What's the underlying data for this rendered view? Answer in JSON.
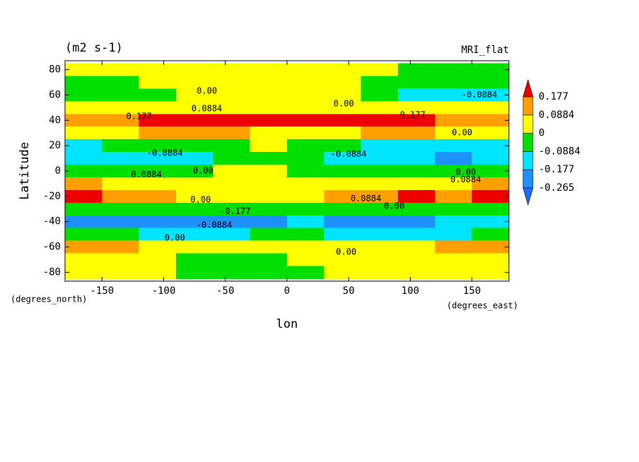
{
  "chart_data": {
    "type": "contour",
    "title": "(m2 s-1)",
    "subtitle": "MRI_flat",
    "xlabel": "lon",
    "ylabel": "Latitude",
    "x_units": "(degrees_east)",
    "y_units": "(degrees_north)",
    "xlim": [
      -180,
      180
    ],
    "ylim": [
      -87,
      87
    ],
    "xticks": [
      -150,
      -100,
      -50,
      0,
      50,
      100,
      150
    ],
    "yticks": [
      80,
      60,
      40,
      20,
      0,
      -20,
      -40,
      -60,
      -80
    ],
    "levels": [
      -0.265,
      -0.177,
      -0.0884,
      0,
      0.0884,
      0.177
    ],
    "colors": [
      "#1e6cff",
      "#1e90ff",
      "#00e5ff",
      "#00e000",
      "#ffff00",
      "#ffa000",
      "#ee0000"
    ],
    "lon": [
      -165,
      -135,
      -105,
      -75,
      -45,
      -15,
      15,
      45,
      75,
      105,
      135,
      165
    ],
    "lat": [
      80,
      70,
      60,
      50,
      40,
      30,
      20,
      10,
      0,
      -10,
      -20,
      -30,
      -40,
      -50,
      -60,
      -70,
      -80
    ],
    "values": [
      [
        0.02,
        0.02,
        0.02,
        0.03,
        0.03,
        0.03,
        0.02,
        0.02,
        0.02,
        -0.03,
        -0.03,
        -0.03
      ],
      [
        -0.03,
        -0.03,
        0.02,
        0.02,
        0.03,
        0.03,
        0.02,
        0.02,
        -0.03,
        -0.03,
        -0.03,
        -0.03
      ],
      [
        -0.05,
        -0.05,
        -0.03,
        0.02,
        0.02,
        0.02,
        0.02,
        0.02,
        -0.05,
        -0.1,
        -0.1,
        -0.1
      ],
      [
        0.02,
        0.02,
        0.03,
        0.05,
        0.05,
        0.03,
        0.03,
        0.03,
        0.03,
        0.02,
        0.02,
        0.02
      ],
      [
        0.1,
        0.15,
        0.2,
        0.2,
        0.2,
        0.2,
        0.2,
        0.2,
        0.2,
        0.2,
        0.15,
        0.1
      ],
      [
        0.05,
        0.05,
        0.1,
        0.1,
        0.1,
        0.05,
        0.05,
        0.05,
        0.1,
        0.1,
        0.05,
        0.05
      ],
      [
        -0.1,
        -0.05,
        -0.05,
        -0.05,
        -0.02,
        0.01,
        -0.03,
        -0.05,
        -0.1,
        -0.1,
        -0.12,
        -0.1
      ],
      [
        -0.1,
        -0.12,
        -0.12,
        -0.1,
        -0.05,
        -0.02,
        -0.05,
        -0.1,
        -0.12,
        -0.12,
        -0.2,
        -0.1
      ],
      [
        -0.03,
        -0.03,
        -0.03,
        -0.02,
        0.02,
        0.02,
        -0.02,
        -0.02,
        -0.03,
        -0.05,
        -0.05,
        -0.03
      ],
      [
        0.1,
        0.05,
        0.05,
        0.02,
        0.02,
        0.02,
        0.02,
        0.02,
        0.05,
        0.05,
        0.05,
        0.1
      ],
      [
        0.2,
        0.1,
        0.1,
        0.05,
        0.03,
        0.02,
        0.02,
        0.1,
        0.15,
        0.2,
        0.15,
        0.2
      ],
      [
        -0.03,
        -0.03,
        -0.05,
        -0.05,
        -0.05,
        -0.03,
        -0.03,
        -0.05,
        -0.05,
        -0.05,
        -0.03,
        -0.03
      ],
      [
        -0.2,
        -0.2,
        -0.2,
        -0.2,
        -0.25,
        -0.2,
        -0.15,
        -0.2,
        -0.2,
        -0.2,
        -0.15,
        -0.15
      ],
      [
        -0.05,
        -0.05,
        -0.1,
        -0.1,
        -0.1,
        -0.05,
        -0.05,
        -0.1,
        -0.1,
        -0.1,
        -0.1,
        -0.05
      ],
      [
        0.1,
        0.1,
        0.05,
        0.03,
        0.02,
        0.02,
        0.02,
        0.02,
        0.03,
        0.05,
        0.1,
        0.1
      ],
      [
        0.03,
        0.03,
        0.02,
        -0.02,
        -0.03,
        -0.03,
        0.02,
        0.02,
        0.02,
        0.02,
        0.02,
        0.03
      ],
      [
        0.02,
        0.02,
        0.02,
        -0.03,
        -0.05,
        -0.03,
        -0.02,
        0.02,
        0.02,
        0.02,
        0.02,
        0.02
      ]
    ],
    "contour_labels": [
      {
        "text": "0.00",
        "lon": -65,
        "lat": 63
      },
      {
        "text": "0.00",
        "lon": 46,
        "lat": 53
      },
      {
        "text": "-0.0884",
        "lon": 156,
        "lat": 60
      },
      {
        "text": "0.177",
        "lon": -120,
        "lat": 43
      },
      {
        "text": "0.0884",
        "lon": -65,
        "lat": 49
      },
      {
        "text": "0.177",
        "lon": 102,
        "lat": 44
      },
      {
        "text": "0.00",
        "lon": 142,
        "lat": 30
      },
      {
        "text": "-0.0884",
        "lon": -99,
        "lat": 14
      },
      {
        "text": "-0.0884",
        "lon": 50,
        "lat": 13
      },
      {
        "text": "0.0884",
        "lon": -114,
        "lat": -3
      },
      {
        "text": "0.00",
        "lon": -68,
        "lat": 0
      },
      {
        "text": "0.00",
        "lon": 145,
        "lat": -1
      },
      {
        "text": "0.0884",
        "lon": 145,
        "lat": -7
      },
      {
        "text": "0.0884",
        "lon": 64,
        "lat": -22
      },
      {
        "text": "0.00",
        "lon": 87,
        "lat": -28
      },
      {
        "text": "0.00",
        "lon": -70,
        "lat": -23
      },
      {
        "text": "-0.177",
        "lon": -42,
        "lat": -32
      },
      {
        "text": "-0.0884",
        "lon": -59,
        "lat": -43
      },
      {
        "text": "0.00",
        "lon": -91,
        "lat": -53
      },
      {
        "text": "0.00",
        "lon": 48,
        "lat": -64
      }
    ]
  }
}
